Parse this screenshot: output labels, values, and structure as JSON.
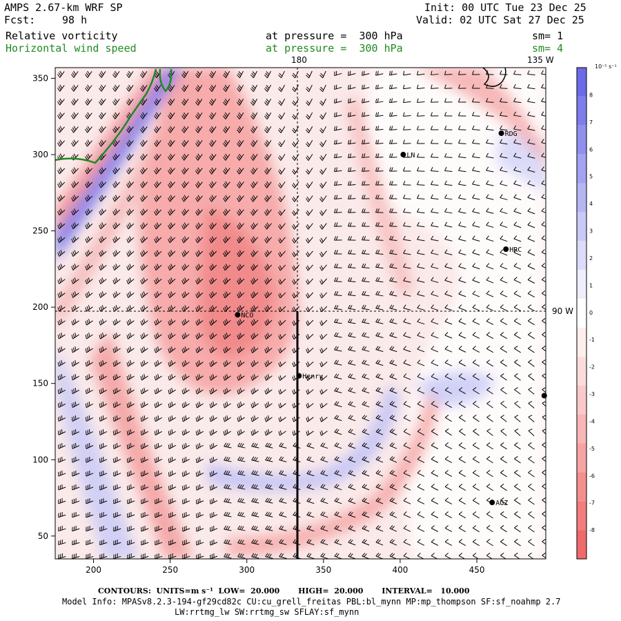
{
  "header": {
    "model": "AMPS 2.67-km WRF SP",
    "fcst_label": "Fcst:",
    "fcst_value": "98 h",
    "init": "Init: 00 UTC Tue 23 Dec 25",
    "valid": "Valid: 02 UTC Sat 27 Dec 25"
  },
  "fields": [
    {
      "name": "Relative vorticity",
      "pressure": "at pressure =  300 hPa",
      "sm": "sm= 1",
      "color": "#000000"
    },
    {
      "name": "Horizontal wind speed",
      "pressure": "at pressure =  300 hPa",
      "sm": "sm= 4",
      "color": "#1f8a1f"
    }
  ],
  "map_labels": {
    "lon_180": "180",
    "lon_135w": "135 W",
    "lon_90w": "90 W"
  },
  "stations": [
    {
      "name": "RDG",
      "x": 466,
      "y": 314
    },
    {
      "name": "LN",
      "x": 402,
      "y": 300
    },
    {
      "name": "HRC",
      "x": 469,
      "y": 238
    },
    {
      "name": "NCO",
      "x": 294,
      "y": 195
    },
    {
      "name": "Henry",
      "x": 334,
      "y": 155
    },
    {
      "name": "AGZ",
      "x": 460,
      "y": 72
    },
    {
      "name": "",
      "x": 494,
      "y": 142
    }
  ],
  "colorbar": {
    "unit": "10⁻⁵ s⁻¹",
    "ticks": [
      "8",
      "7",
      "6",
      "5",
      "4",
      "3",
      "2",
      "1",
      "0",
      "-1",
      "-2",
      "-3",
      "-4",
      "-5",
      "-6",
      "-7",
      "-8"
    ],
    "colors": [
      "#6b6be8",
      "#7d7deb",
      "#8f8fee",
      "#a3a3f1",
      "#b6b6f4",
      "#c9c9f7",
      "#dcdcfa",
      "#eeeefd",
      "#ffffff",
      "#ffeeee",
      "#fddcdc",
      "#fbc9c9",
      "#f9b6b6",
      "#f7a3a3",
      "#f48f8f",
      "#f27d7d",
      "#ef6b6b"
    ]
  },
  "axes": {
    "x_ticks": [
      200,
      250,
      300,
      350,
      400,
      450
    ],
    "y_ticks": [
      50,
      100,
      150,
      200,
      250,
      300,
      350
    ],
    "x_range": [
      175,
      495
    ],
    "y_range": [
      35,
      357
    ]
  },
  "footer": {
    "contours": "CONTOURS:  UNITS=m s⁻¹  LOW=  20.000       HIGH=  20.000       INTERVAL=   10.000",
    "model_info": "Model Info: MPASv8.2.3-194-gf29cd82c CU:cu_grell_freitas PBL:bl_mynn MP:mp_thompson SF:sf_noahmp 2.7",
    "model_info2": "LW:rrtmg_lw SW:rrtmg_sw SFLAY:sf_mynn"
  }
}
